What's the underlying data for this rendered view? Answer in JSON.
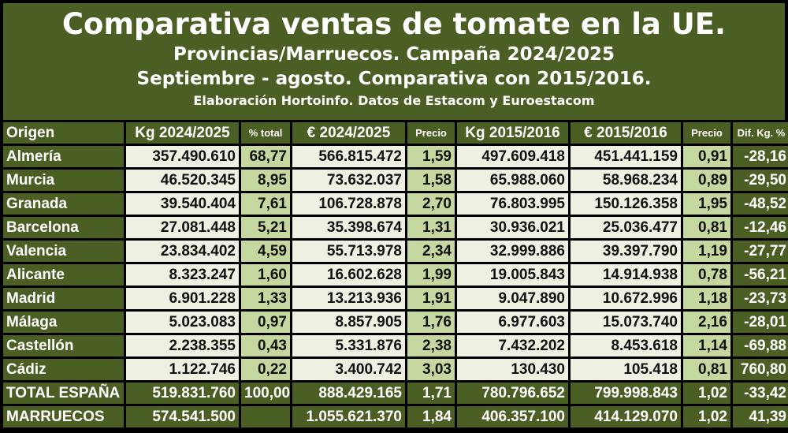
{
  "title": {
    "line1": "Comparativa ventas de tomate en la UE.",
    "line2": "Provincias/Marruecos. Campaña 2024/2025",
    "line3": "Septiembre - agosto. Comparativa con 2015/2016.",
    "line4": "Elaboración Hortoinfo. Datos de Estacom y Euroestacom"
  },
  "columns": [
    "Origen",
    "Kg 2024/2025",
    "% total",
    "€ 2024/2025",
    "Precio",
    "Kg 2015/2016",
    "€ 2015/2016",
    "Precio",
    "Dif. Kg. %"
  ],
  "rows": [
    [
      "Almería",
      "357.490.610",
      "68,77",
      "566.815.472",
      "1,59",
      "497.609.418",
      "451.441.159",
      "0,91",
      "-28,16"
    ],
    [
      "Murcia",
      "46.520.345",
      "8,95",
      "73.632.037",
      "1,58",
      "65.988.060",
      "58.968.234",
      "0,89",
      "-29,50"
    ],
    [
      "Granada",
      "39.540.404",
      "7,61",
      "106.728.878",
      "2,70",
      "76.803.995",
      "150.126.358",
      "1,95",
      "-48,52"
    ],
    [
      "Barcelona",
      "27.081.448",
      "5,21",
      "35.398.674",
      "1,31",
      "30.936.021",
      "25.036.477",
      "0,81",
      "-12,46"
    ],
    [
      "Valencia",
      "23.834.402",
      "4,59",
      "55.713.978",
      "2,34",
      "32.999.886",
      "39.397.790",
      "1,19",
      "-27,77"
    ],
    [
      "Alicante",
      "8.323.247",
      "1,60",
      "16.602.628",
      "1,99",
      "19.005.843",
      "14.914.938",
      "0,78",
      "-56,21"
    ],
    [
      "Madrid",
      "6.901.228",
      "1,33",
      "13.213.936",
      "1,91",
      "9.047.890",
      "10.672.996",
      "1,18",
      "-23,73"
    ],
    [
      "Málaga",
      "5.023.083",
      "0,97",
      "8.857.905",
      "1,76",
      "6.977.603",
      "15.073.740",
      "2,16",
      "-28,01"
    ],
    [
      "Castellón",
      "2.238.355",
      "0,43",
      "5.331.876",
      "2,38",
      "7.432.202",
      "8.453.618",
      "1,14",
      "-69,88"
    ],
    [
      "Cádiz",
      "1.122.746",
      "0,22",
      "3.400.742",
      "3,03",
      "130.430",
      "105.418",
      "0,81",
      "760,80"
    ]
  ],
  "totals": [
    [
      "TOTAL ESPAÑA",
      "519.831.760",
      "100,00",
      "888.429.165",
      "1,71",
      "780.796.652",
      "799.998.843",
      "1,02",
      "-33,42"
    ],
    [
      "MARRUECOS",
      "574.541.500",
      "",
      "1.055.621.370",
      "1,84",
      "406.357.100",
      "414.129.070",
      "1,02",
      "41,39"
    ]
  ],
  "colors": {
    "dark": "#4b5e24",
    "light": "#eef0e2",
    "medium": "#c5d89f"
  }
}
